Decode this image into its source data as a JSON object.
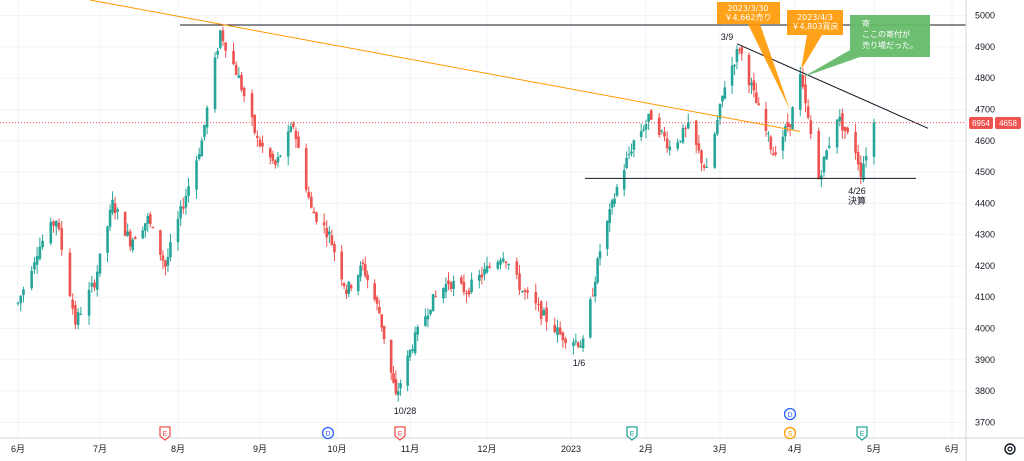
{
  "chart_data": {
    "type": "candlestick",
    "symbol_badge": "6954",
    "last_price_badge": "4658",
    "ylim": [
      3650,
      5050
    ],
    "y_ticks": [
      3700,
      3800,
      3900,
      4000,
      4100,
      4200,
      4300,
      4400,
      4500,
      4600,
      4700,
      4800,
      4900,
      5000
    ],
    "x_ticks": [
      "6月",
      "7月",
      "8月",
      "9月",
      "10月",
      "11月",
      "12月",
      "2023",
      "2月",
      "3月",
      "4月",
      "5月",
      "6月"
    ],
    "grid": true,
    "colors": {
      "up": "#26a69a",
      "down": "#ef5350",
      "orange": "#ff9800",
      "green_callout": "#66bb6a",
      "event_earnings": "#ef5350",
      "event_dividend": "#2962ff",
      "event_split": "#ff9800",
      "event_earnings_green": "#26a69a"
    },
    "price_points": [
      {
        "x": "2022-06-01",
        "y": 4080
      },
      {
        "x": "2022-06-08",
        "y": 4250
      },
      {
        "x": "2022-06-15",
        "y": 4350
      },
      {
        "x": "2022-06-22",
        "y": 4020
      },
      {
        "x": "2022-06-29",
        "y": 4150
      },
      {
        "x": "2022-07-06",
        "y": 4400
      },
      {
        "x": "2022-07-13",
        "y": 4280
      },
      {
        "x": "2022-07-20",
        "y": 4350
      },
      {
        "x": "2022-07-27",
        "y": 4200
      },
      {
        "x": "2022-08-03",
        "y": 4400
      },
      {
        "x": "2022-08-10",
        "y": 4600
      },
      {
        "x": "2022-08-17",
        "y": 4950
      },
      {
        "x": "2022-08-24",
        "y": 4800
      },
      {
        "x": "2022-08-31",
        "y": 4600
      },
      {
        "x": "2022-09-07",
        "y": 4520
      },
      {
        "x": "2022-09-14",
        "y": 4650
      },
      {
        "x": "2022-09-21",
        "y": 4380
      },
      {
        "x": "2022-09-28",
        "y": 4300
      },
      {
        "x": "2022-10-05",
        "y": 4120
      },
      {
        "x": "2022-10-12",
        "y": 4200
      },
      {
        "x": "2022-10-19",
        "y": 4050
      },
      {
        "x": "2022-10-26",
        "y": 3780
      },
      {
        "x": "2022-11-02",
        "y": 3950
      },
      {
        "x": "2022-11-09",
        "y": 4080
      },
      {
        "x": "2022-11-16",
        "y": 4150
      },
      {
        "x": "2022-11-23",
        "y": 4120
      },
      {
        "x": "2022-11-30",
        "y": 4180
      },
      {
        "x": "2022-12-07",
        "y": 4240
      },
      {
        "x": "2022-12-14",
        "y": 4120
      },
      {
        "x": "2022-12-21",
        "y": 4050
      },
      {
        "x": "2022-12-28",
        "y": 3980
      },
      {
        "x": "2023-01-06",
        "y": 3950
      },
      {
        "x": "2023-01-13",
        "y": 4250
      },
      {
        "x": "2023-01-20",
        "y": 4450
      },
      {
        "x": "2023-01-27",
        "y": 4600
      },
      {
        "x": "2023-02-03",
        "y": 4680
      },
      {
        "x": "2023-02-10",
        "y": 4580
      },
      {
        "x": "2023-02-17",
        "y": 4640
      },
      {
        "x": "2023-02-24",
        "y": 4500
      },
      {
        "x": "2023-03-03",
        "y": 4780
      },
      {
        "x": "2023-03-09",
        "y": 4900
      },
      {
        "x": "2023-03-16",
        "y": 4720
      },
      {
        "x": "2023-03-23",
        "y": 4560
      },
      {
        "x": "2023-03-30",
        "y": 4662
      },
      {
        "x": "2023-04-03",
        "y": 4803
      },
      {
        "x": "2023-04-10",
        "y": 4480
      },
      {
        "x": "2023-04-17",
        "y": 4680
      },
      {
        "x": "2023-04-24",
        "y": 4570
      },
      {
        "x": "2023-04-26",
        "y": 4500
      },
      {
        "x": "2023-05-01",
        "y": 4658
      }
    ],
    "annotations": {
      "low_1028": "10/28",
      "low_0106": "1/6",
      "high_0309": "3/9",
      "kessan_date": "4/26",
      "kessan_label": "決算",
      "callout_sell_date": "2023/3/30",
      "callout_sell_text": "￥4,662売り",
      "callout_buyback_date": "2023/4/3",
      "callout_buyback_text": "￥4,803買戻",
      "callout_note_1": "寄",
      "callout_note_2": "ここの寄付が",
      "callout_note_3": "売り場だった。"
    },
    "lines": {
      "resistance_horizontal": 4970,
      "support_horizontal": 4480
    },
    "events": [
      {
        "month_label": "8月",
        "letter": "E",
        "kind": "earnings"
      },
      {
        "month_label": "9月",
        "letter": "D",
        "kind": "dividend"
      },
      {
        "month_label": "10月",
        "letter": "E",
        "kind": "earnings"
      },
      {
        "month_label": "2月",
        "letter": "E",
        "kind": "earnings_green"
      },
      {
        "month_label": "4月",
        "letter": "D",
        "kind": "dividend"
      },
      {
        "month_label": "4月",
        "letter": "S",
        "kind": "split"
      },
      {
        "month_label": "5月",
        "letter": "E",
        "kind": "earnings_green"
      }
    ]
  },
  "ui": {
    "settings_icon": "gear-icon"
  }
}
